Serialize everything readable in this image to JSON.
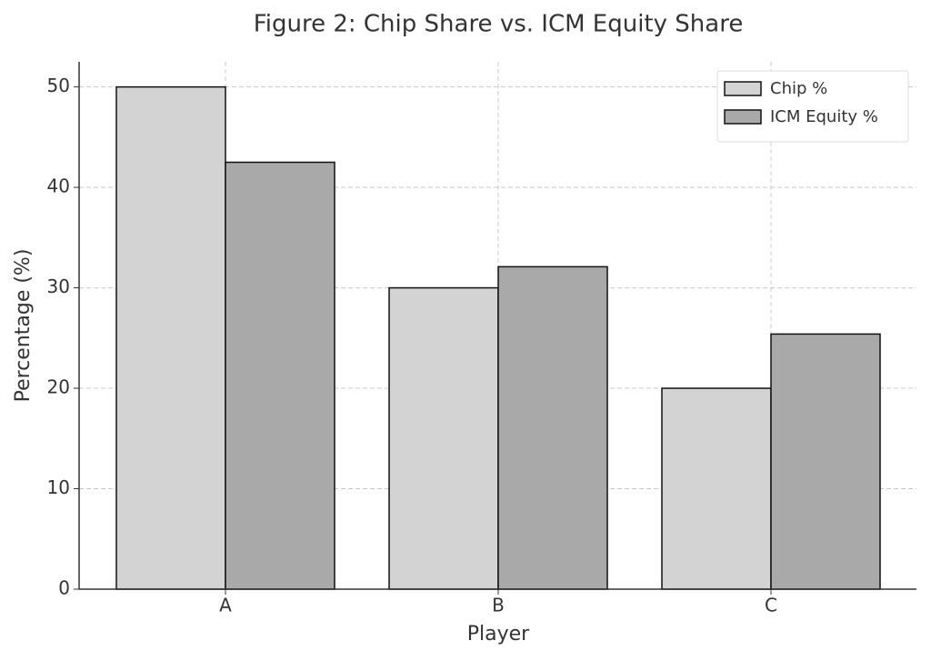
{
  "chart_data": {
    "type": "bar",
    "title": "Figure 2: Chip Share vs. ICM Equity Share",
    "x_label": "Player",
    "y_label": "Percentage (%)",
    "categories": [
      "A",
      "B",
      "C"
    ],
    "series": [
      {
        "name": "Chip %",
        "color": "#d3d3d3",
        "values": [
          50,
          30,
          20
        ]
      },
      {
        "name": "ICM Equity %",
        "color": "#a9a9a9",
        "values": [
          42.5,
          32.1,
          25.4
        ]
      }
    ],
    "ylim": [
      0,
      52.5
    ],
    "yticks": [
      0,
      10,
      20,
      30,
      40,
      50
    ],
    "grid": true,
    "legend": "upper-right"
  }
}
